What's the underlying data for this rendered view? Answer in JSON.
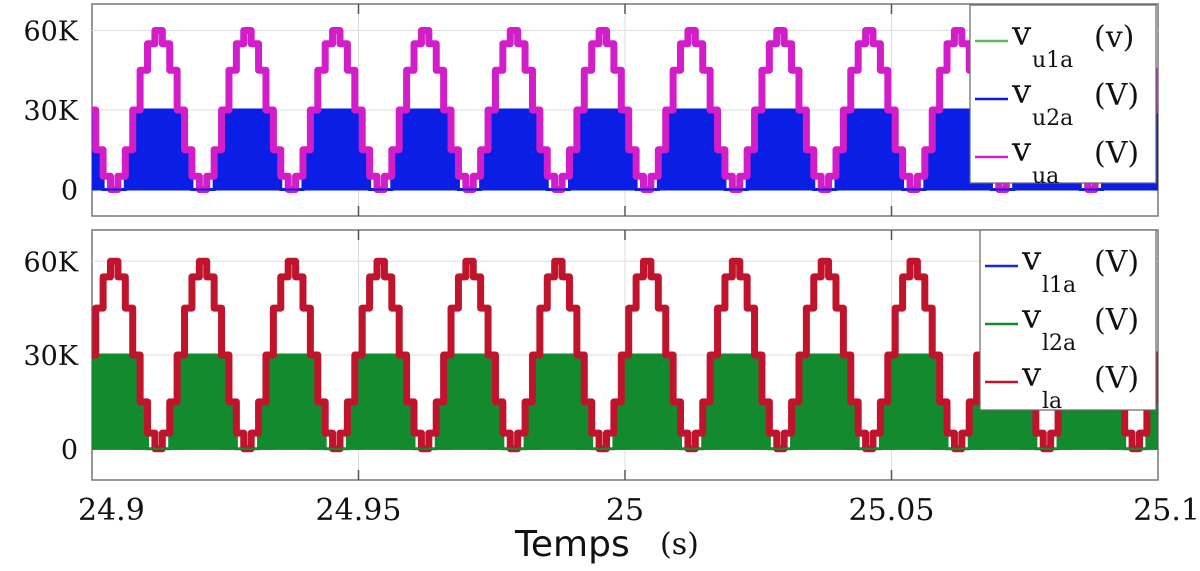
{
  "chart_data": [
    {
      "type": "line",
      "xlim": [
        24.9,
        25.1
      ],
      "ylim": [
        -10000,
        70000
      ],
      "yticks": [
        0,
        30000,
        60000
      ],
      "ytick_labels": [
        "0",
        "30K",
        "60K"
      ],
      "grid": true,
      "legend_placement": "top-right",
      "x_start": 24.9,
      "sample_interval_s": 0.00138889,
      "series": [
        {
          "name": "v_u1a (v)",
          "symbol": "v",
          "sub": "u1a",
          "unit": "(v)",
          "color": "#5cb85c",
          "values": [
            0,
            0,
            0,
            0,
            0,
            0,
            0,
            15000,
            25000,
            30000,
            25000,
            15000,
            0,
            0,
            0,
            0,
            0,
            0,
            0,
            15000,
            25000,
            30000,
            25000,
            15000,
            0,
            0,
            0,
            0,
            0,
            0,
            0,
            15000,
            25000,
            30000,
            25000,
            15000,
            0,
            0,
            0,
            0,
            0,
            0,
            0,
            15000,
            25000,
            30000,
            25000,
            15000,
            0,
            0,
            0,
            0,
            0,
            0,
            0,
            15000,
            25000,
            30000,
            25000,
            15000,
            0,
            0,
            0,
            0,
            0,
            0,
            0,
            15000,
            25000,
            30000,
            25000,
            15000,
            0,
            0,
            0,
            0,
            0,
            0,
            0,
            15000,
            25000,
            30000,
            25000,
            15000,
            0,
            0,
            0,
            0,
            0,
            0,
            0,
            15000,
            25000,
            30000,
            25000,
            15000,
            0,
            0,
            0,
            0,
            0,
            0,
            0,
            15000,
            25000,
            30000,
            25000,
            15000,
            0,
            0,
            0,
            0,
            0,
            0,
            0,
            15000,
            25000,
            30000,
            25000,
            15000,
            0,
            0,
            0,
            0,
            0,
            0,
            0,
            15000,
            25000,
            30000,
            25000,
            15000,
            0,
            0,
            0,
            0,
            0,
            0,
            0,
            15000,
            25000,
            30000,
            25000,
            15000,
            0
          ]
        },
        {
          "name": "v_u2a (V)",
          "symbol": "v",
          "sub": "u2a",
          "unit": "(V)",
          "color": "#0a1ee6",
          "values": [
            30000,
            15000,
            0,
            0,
            0,
            15000,
            30000,
            30000,
            30000,
            30000,
            30000,
            30000,
            30000,
            15000,
            0,
            0,
            0,
            15000,
            30000,
            30000,
            30000,
            30000,
            30000,
            30000,
            30000,
            15000,
            0,
            0,
            0,
            15000,
            30000,
            30000,
            30000,
            30000,
            30000,
            30000,
            30000,
            15000,
            0,
            0,
            0,
            15000,
            30000,
            30000,
            30000,
            30000,
            30000,
            30000,
            30000,
            15000,
            0,
            0,
            0,
            15000,
            30000,
            30000,
            30000,
            30000,
            30000,
            30000,
            30000,
            15000,
            0,
            0,
            0,
            15000,
            30000,
            30000,
            30000,
            30000,
            30000,
            30000,
            30000,
            15000,
            0,
            0,
            0,
            15000,
            30000,
            30000,
            30000,
            30000,
            30000,
            30000,
            30000,
            15000,
            0,
            0,
            0,
            15000,
            30000,
            30000,
            30000,
            30000,
            30000,
            30000,
            30000,
            15000,
            0,
            0,
            0,
            15000,
            30000,
            30000,
            30000,
            30000,
            30000,
            30000,
            30000,
            15000,
            0,
            0,
            0,
            15000,
            30000,
            30000,
            30000,
            30000,
            30000,
            30000,
            30000,
            15000,
            0,
            0,
            0,
            15000,
            30000,
            30000,
            30000,
            30000,
            30000,
            30000,
            30000,
            15000,
            0,
            0,
            0,
            15000,
            30000,
            30000,
            30000,
            30000,
            30000,
            30000,
            30000
          ]
        },
        {
          "name": "v_ua (V)",
          "symbol": "v",
          "sub": "ua",
          "unit": "(V)",
          "color": "#d21ec8",
          "values": [
            30000,
            15000,
            5000,
            0,
            5000,
            15000,
            30000,
            45000,
            55000,
            60000,
            55000,
            45000,
            30000,
            15000,
            5000,
            0,
            5000,
            15000,
            30000,
            45000,
            55000,
            60000,
            55000,
            45000,
            30000,
            15000,
            5000,
            0,
            5000,
            15000,
            30000,
            45000,
            55000,
            60000,
            55000,
            45000,
            30000,
            15000,
            5000,
            0,
            5000,
            15000,
            30000,
            45000,
            55000,
            60000,
            55000,
            45000,
            30000,
            15000,
            5000,
            0,
            5000,
            15000,
            30000,
            45000,
            55000,
            60000,
            55000,
            45000,
            30000,
            15000,
            5000,
            0,
            5000,
            15000,
            30000,
            45000,
            55000,
            60000,
            55000,
            45000,
            30000,
            15000,
            5000,
            0,
            5000,
            15000,
            30000,
            45000,
            55000,
            60000,
            55000,
            45000,
            30000,
            15000,
            5000,
            0,
            5000,
            15000,
            30000,
            45000,
            55000,
            60000,
            55000,
            45000,
            30000,
            15000,
            5000,
            0,
            5000,
            15000,
            30000,
            45000,
            55000,
            60000,
            55000,
            45000,
            30000,
            15000,
            5000,
            0,
            5000,
            15000,
            30000,
            45000,
            55000,
            60000,
            55000,
            45000,
            30000,
            15000,
            5000,
            0,
            5000,
            15000,
            30000,
            45000,
            55000,
            60000,
            55000,
            45000,
            30000,
            15000,
            5000,
            0,
            5000,
            15000,
            30000,
            45000,
            55000,
            60000,
            55000,
            45000,
            30000
          ]
        }
      ]
    },
    {
      "type": "line",
      "xlim": [
        24.9,
        25.1
      ],
      "ylim": [
        -10000,
        70000
      ],
      "yticks": [
        0,
        30000,
        60000
      ],
      "ytick_labels": [
        "0",
        "30K",
        "60K"
      ],
      "xticks": [
        24.9,
        24.95,
        25,
        25.05,
        25.1
      ],
      "xtick_labels": [
        "24.9",
        "24.95",
        "25",
        "25.05",
        "25.1"
      ],
      "xlabel": "Temps",
      "xlabel_unit": "(s)",
      "grid": true,
      "legend_placement": "top-right",
      "x_start": 24.9,
      "sample_interval_s": 0.00138889,
      "series": [
        {
          "name": "v_l1a (V)",
          "symbol": "v",
          "sub": "l1a",
          "unit": "(V)",
          "color": "#1428e0",
          "values": [
            0,
            15000,
            25000,
            30000,
            25000,
            15000,
            0,
            0,
            0,
            0,
            0,
            0,
            0,
            15000,
            25000,
            30000,
            25000,
            15000,
            0,
            0,
            0,
            0,
            0,
            0,
            0,
            15000,
            25000,
            30000,
            25000,
            15000,
            0,
            0,
            0,
            0,
            0,
            0,
            0,
            15000,
            25000,
            30000,
            25000,
            15000,
            0,
            0,
            0,
            0,
            0,
            0,
            0,
            15000,
            25000,
            30000,
            25000,
            15000,
            0,
            0,
            0,
            0,
            0,
            0,
            0,
            15000,
            25000,
            30000,
            25000,
            15000,
            0,
            0,
            0,
            0,
            0,
            0,
            0,
            15000,
            25000,
            30000,
            25000,
            15000,
            0,
            0,
            0,
            0,
            0,
            0,
            0,
            15000,
            25000,
            30000,
            25000,
            15000,
            0,
            0,
            0,
            0,
            0,
            0,
            0,
            15000,
            25000,
            30000,
            25000,
            15000,
            0,
            0,
            0,
            0,
            0,
            0,
            0,
            15000,
            25000,
            30000,
            25000,
            15000,
            0,
            0,
            0,
            0,
            0,
            0,
            0,
            15000,
            25000,
            30000,
            25000,
            15000,
            0,
            0,
            0,
            0,
            0,
            0,
            0,
            15000,
            25000,
            30000,
            25000,
            15000,
            0,
            0,
            0,
            0,
            0,
            0,
            0
          ]
        },
        {
          "name": "v_l2a (V)",
          "symbol": "v",
          "sub": "l2a",
          "unit": "(V)",
          "color": "#138a2e",
          "values": [
            30000,
            30000,
            30000,
            30000,
            30000,
            30000,
            30000,
            15000,
            0,
            0,
            0,
            15000,
            30000,
            30000,
            30000,
            30000,
            30000,
            30000,
            30000,
            15000,
            0,
            0,
            0,
            15000,
            30000,
            30000,
            30000,
            30000,
            30000,
            30000,
            30000,
            15000,
            0,
            0,
            0,
            15000,
            30000,
            30000,
            30000,
            30000,
            30000,
            30000,
            30000,
            15000,
            0,
            0,
            0,
            15000,
            30000,
            30000,
            30000,
            30000,
            30000,
            30000,
            30000,
            15000,
            0,
            0,
            0,
            15000,
            30000,
            30000,
            30000,
            30000,
            30000,
            30000,
            30000,
            15000,
            0,
            0,
            0,
            15000,
            30000,
            30000,
            30000,
            30000,
            30000,
            30000,
            30000,
            15000,
            0,
            0,
            0,
            15000,
            30000,
            30000,
            30000,
            30000,
            30000,
            30000,
            30000,
            15000,
            0,
            0,
            0,
            15000,
            30000,
            30000,
            30000,
            30000,
            30000,
            30000,
            30000,
            15000,
            0,
            0,
            0,
            15000,
            30000,
            30000,
            30000,
            30000,
            30000,
            30000,
            30000,
            15000,
            0,
            0,
            0,
            15000,
            30000,
            30000,
            30000,
            30000,
            30000,
            30000,
            30000,
            15000,
            0,
            0,
            0,
            15000,
            30000,
            30000,
            30000,
            30000,
            30000,
            30000,
            30000,
            15000,
            0,
            0,
            0,
            15000,
            30000
          ]
        },
        {
          "name": "v_la (V)",
          "symbol": "v",
          "sub": "la",
          "unit": "(V)",
          "color": "#c0142d",
          "values": [
            30000,
            45000,
            55000,
            60000,
            55000,
            45000,
            30000,
            15000,
            5000,
            0,
            5000,
            15000,
            30000,
            45000,
            55000,
            60000,
            55000,
            45000,
            30000,
            15000,
            5000,
            0,
            5000,
            15000,
            30000,
            45000,
            55000,
            60000,
            55000,
            45000,
            30000,
            15000,
            5000,
            0,
            5000,
            15000,
            30000,
            45000,
            55000,
            60000,
            55000,
            45000,
            30000,
            15000,
            5000,
            0,
            5000,
            15000,
            30000,
            45000,
            55000,
            60000,
            55000,
            45000,
            30000,
            15000,
            5000,
            0,
            5000,
            15000,
            30000,
            45000,
            55000,
            60000,
            55000,
            45000,
            30000,
            15000,
            5000,
            0,
            5000,
            15000,
            30000,
            45000,
            55000,
            60000,
            55000,
            45000,
            30000,
            15000,
            5000,
            0,
            5000,
            15000,
            30000,
            45000,
            55000,
            60000,
            55000,
            45000,
            30000,
            15000,
            5000,
            0,
            5000,
            15000,
            30000,
            45000,
            55000,
            60000,
            55000,
            45000,
            30000,
            15000,
            5000,
            0,
            5000,
            15000,
            30000,
            45000,
            55000,
            60000,
            55000,
            45000,
            30000,
            15000,
            5000,
            0,
            5000,
            15000,
            30000,
            45000,
            55000,
            60000,
            55000,
            45000,
            30000,
            15000,
            5000,
            0,
            5000,
            15000,
            30000,
            45000,
            55000,
            60000,
            55000,
            45000,
            30000,
            15000,
            5000,
            0,
            5000,
            15000,
            30000
          ]
        }
      ]
    }
  ]
}
